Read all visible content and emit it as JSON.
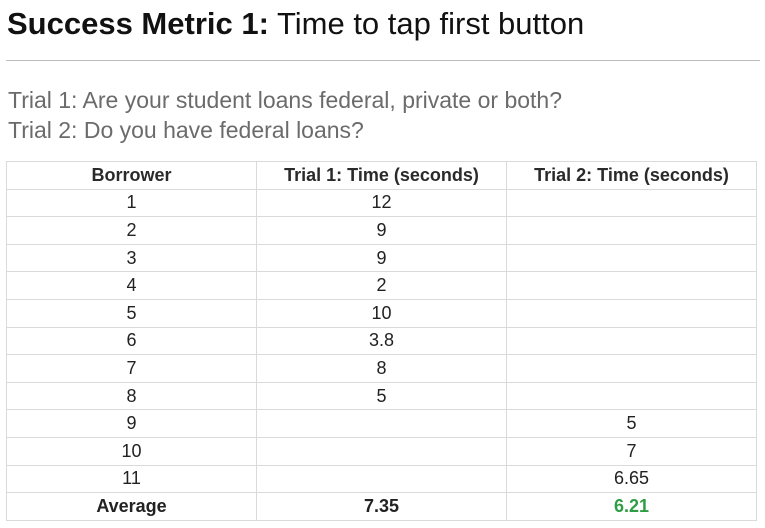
{
  "header": {
    "title_bold": "Success Metric 1:",
    "title_rest": " Time to tap first button"
  },
  "trials": {
    "trial1": "Trial 1: Are your student loans federal, private or both?",
    "trial2": "Trial 2: Do you have federal loans?"
  },
  "table": {
    "columns": [
      "Borrower",
      "Trial 1: Time (seconds)",
      "Trial 2: Time (seconds)"
    ],
    "rows": [
      [
        "1",
        "12",
        ""
      ],
      [
        "2",
        "9",
        ""
      ],
      [
        "3",
        "9",
        ""
      ],
      [
        "4",
        "2",
        ""
      ],
      [
        "5",
        "10",
        ""
      ],
      [
        "6",
        "3.8",
        ""
      ],
      [
        "7",
        "8",
        ""
      ],
      [
        "8",
        "5",
        ""
      ],
      [
        "9",
        "",
        "5"
      ],
      [
        "10",
        "",
        "7"
      ],
      [
        "11",
        "",
        "6.65"
      ]
    ],
    "average": {
      "label": "Average",
      "trial1": "7.35",
      "trial2": "6.21"
    }
  },
  "colors": {
    "highlight": "#2e9e44"
  }
}
